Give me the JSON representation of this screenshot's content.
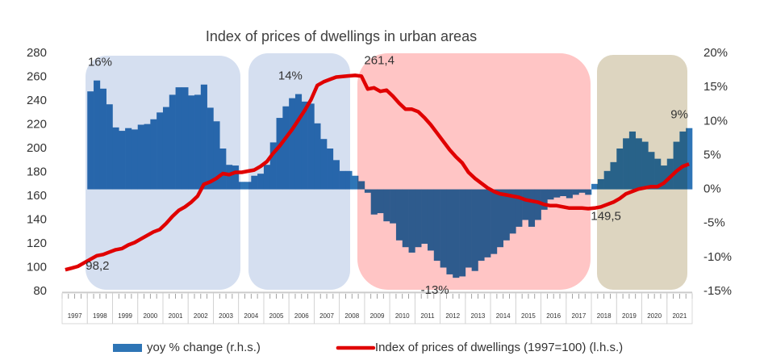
{
  "chart_data": {
    "type": "bar+line",
    "title": "Index of prices of dwellings in urban areas",
    "categories": [
      "1997",
      null,
      null,
      null,
      "1998",
      null,
      null,
      null,
      "1999",
      null,
      null,
      null,
      "2000",
      null,
      null,
      null,
      "2001",
      null,
      null,
      null,
      "2002",
      null,
      null,
      null,
      "2003",
      null,
      null,
      null,
      "2004",
      null,
      null,
      null,
      "2005",
      null,
      null,
      null,
      "2006",
      null,
      null,
      null,
      "2007",
      null,
      null,
      null,
      "2008",
      null,
      null,
      null,
      "2009",
      null,
      null,
      null,
      "2010",
      null,
      null,
      null,
      "2011",
      null,
      null,
      null,
      "2012",
      null,
      null,
      null,
      "2013",
      null,
      null,
      null,
      "2014",
      null,
      null,
      null,
      "2015",
      null,
      null,
      null,
      "2016",
      null,
      null,
      null,
      "2017",
      null,
      null,
      null,
      "2018",
      null,
      null,
      null,
      "2019",
      null,
      null,
      null,
      "2020",
      null,
      null,
      null,
      "2021",
      null,
      null,
      null
    ],
    "series": [
      {
        "name": "yoy % change (r.h.s.)",
        "type": "bar",
        "axis": "y2",
        "color": "#2e75b6",
        "values": [
          null,
          null,
          null,
          null,
          14.4,
          16,
          14.8,
          12.5,
          9.1,
          8.6,
          9,
          8.8,
          9.5,
          9.6,
          10.3,
          11.3,
          12.1,
          13.9,
          15,
          15,
          13.8,
          13.9,
          15.4,
          12,
          10,
          6,
          3.6,
          3.5,
          1.1,
          1.1,
          2,
          2.3,
          3.6,
          6.9,
          10.5,
          12.2,
          13.4,
          14,
          12.9,
          12.6,
          9.7,
          7.4,
          6,
          4.3,
          2.7,
          2.7,
          2,
          1.2,
          -0.5,
          -3.7,
          -3.5,
          -4.7,
          -5,
          -7.5,
          -8.5,
          -9.3,
          -8.5,
          -8,
          -9,
          -10.5,
          -11.5,
          -12.5,
          -13,
          -12.8,
          -11.5,
          -12,
          -10.5,
          -10,
          -9.5,
          -8.5,
          -7.5,
          -6.5,
          -5.5,
          -4.5,
          -5.5,
          -4.5,
          -3,
          -1.5,
          -1.2,
          -1,
          -1.3,
          -0.8,
          -0.5,
          -0.8,
          0.8,
          1.5,
          2.7,
          4,
          6,
          7.5,
          8.5,
          7.5,
          7,
          5.5,
          4.5,
          3.5,
          4.5,
          7,
          8.5,
          9
        ],
        "value_labels": [
          null,
          null,
          null,
          null,
          null,
          "16%",
          null,
          null,
          null,
          null,
          null,
          null,
          null,
          null,
          null,
          null,
          null,
          null,
          null,
          null,
          null,
          null,
          null,
          null,
          null,
          null,
          null,
          null,
          null,
          null,
          null,
          null,
          null,
          null,
          null,
          null,
          null,
          "14%",
          null,
          null,
          null,
          null,
          null,
          null,
          null,
          null,
          null,
          null,
          null,
          null,
          null,
          null,
          null,
          null,
          null,
          null,
          null,
          null,
          null,
          null,
          null,
          null,
          "-13%",
          null,
          null,
          null,
          null,
          null,
          null,
          null,
          null,
          null,
          null,
          null,
          null,
          null,
          null,
          null,
          null,
          null,
          null,
          null,
          null,
          null,
          null,
          null,
          null,
          null,
          null,
          null,
          null,
          null,
          null,
          null,
          null,
          null,
          null,
          null,
          null,
          "9%"
        ]
      },
      {
        "name": "Index of prices of dwellings (1997=100) (l.h.s.)",
        "type": "line",
        "axis": "y",
        "color": "#e00000",
        "values": [
          98.2,
          99.5,
          101,
          104,
          107,
          110,
          111,
          113,
          115,
          116,
          119,
          121,
          124,
          127,
          130,
          132,
          137,
          143,
          148,
          151,
          155,
          160,
          170,
          172,
          175,
          179,
          178,
          180,
          180,
          181,
          182,
          185,
          189,
          196,
          202,
          209,
          216,
          224,
          232,
          241,
          253,
          256,
          258,
          260,
          260.5,
          261,
          261.4,
          260.8,
          250,
          251,
          248,
          249,
          244,
          238,
          233,
          233,
          231,
          226,
          220,
          213,
          206,
          199,
          193,
          188,
          180,
          175,
          171,
          167,
          164,
          162,
          161,
          160,
          159,
          157,
          156,
          155,
          153,
          152,
          152,
          151,
          150,
          150,
          150,
          149.5,
          150,
          151,
          153,
          155,
          158,
          162,
          164,
          166,
          167,
          168,
          168,
          171,
          176,
          181,
          185,
          187
        ],
        "value_labels": [
          "98,2",
          null,
          null,
          null,
          null,
          null,
          null,
          null,
          null,
          null,
          null,
          null,
          null,
          null,
          null,
          null,
          null,
          null,
          null,
          null,
          null,
          null,
          null,
          null,
          null,
          null,
          null,
          null,
          null,
          null,
          null,
          null,
          null,
          null,
          null,
          null,
          null,
          null,
          null,
          null,
          null,
          null,
          null,
          null,
          null,
          null,
          "261,4",
          null,
          null,
          null,
          null,
          null,
          null,
          null,
          null,
          null,
          null,
          null,
          null,
          null,
          null,
          null,
          null,
          null,
          null,
          null,
          null,
          null,
          null,
          null,
          null,
          null,
          null,
          null,
          null,
          null,
          null,
          null,
          null,
          null,
          null,
          null,
          null,
          "149,5",
          null,
          null,
          null,
          null,
          null,
          null,
          null,
          null,
          null,
          null,
          null,
          null,
          null,
          null,
          null,
          null
        ]
      }
    ],
    "ylim": [
      80,
      280
    ],
    "yticks": [
      80,
      100,
      120,
      140,
      160,
      180,
      200,
      220,
      240,
      260,
      280
    ],
    "y2lim": [
      -15,
      20
    ],
    "y2ticks": [
      {
        "value": -15,
        "label": "-15%"
      },
      {
        "value": -10,
        "label": "-10%"
      },
      {
        "value": -5,
        "label": "-5%"
      },
      {
        "value": 0,
        "label": "0%"
      },
      {
        "value": 5,
        "label": "5%"
      },
      {
        "value": 10,
        "label": "10%"
      },
      {
        "value": 15,
        "label": "15%"
      },
      {
        "value": 20,
        "label": "20%"
      }
    ],
    "grid": false,
    "legend": "bottom"
  }
}
